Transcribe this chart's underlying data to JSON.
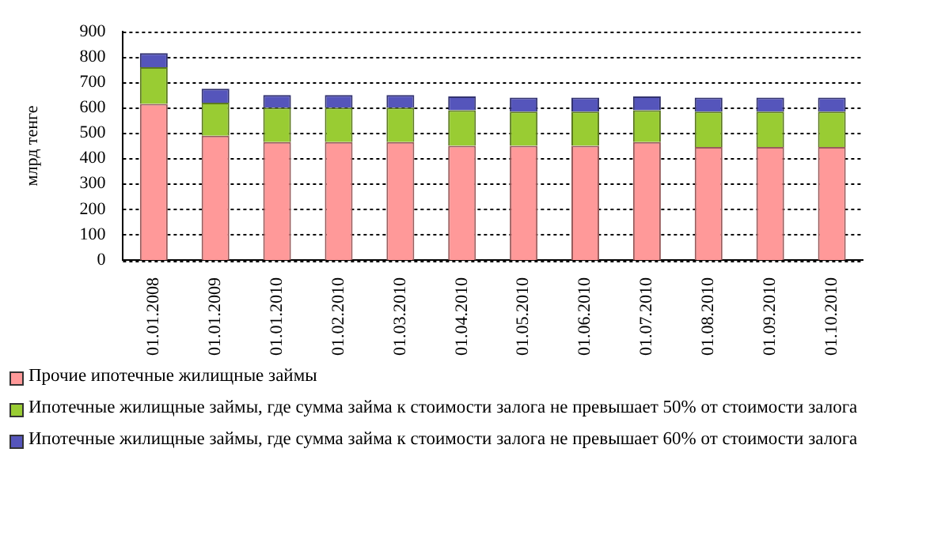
{
  "chart_data": {
    "type": "bar",
    "stacked": true,
    "ylabel": "млрд тенге",
    "categories": [
      "01.01.2008",
      "01.01.2009",
      "01.01.2010",
      "01.02.2010",
      "01.03.2010",
      "01.04.2010",
      "01.05.2010",
      "01.06.2010",
      "01.07.2010",
      "01.08.2010",
      "01.09.2010",
      "01.10.2010"
    ],
    "series": [
      {
        "name": "Прочие ипотечные жилищные займы",
        "color": "#ff9999",
        "values": [
          615,
          490,
          465,
          465,
          465,
          450,
          450,
          450,
          465,
          445,
          445,
          445
        ]
      },
      {
        "name": "Ипотечные жилищные займы, где сумма займа к стоимости залога не превышает 50% от стоимости залога",
        "color": "#99cc33",
        "values": [
          145,
          130,
          135,
          135,
          135,
          140,
          135,
          135,
          125,
          140,
          140,
          140
        ]
      },
      {
        "name": "Ипотечные жилищные займы, где сумма займа к стоимости залога не превышает 60% от стоимости залога",
        "color": "#5555bb",
        "values": [
          55,
          55,
          50,
          50,
          50,
          55,
          55,
          55,
          55,
          55,
          55,
          55
        ]
      }
    ],
    "ylim": [
      0,
      900
    ],
    "yticks": [
      0,
      100,
      200,
      300,
      400,
      500,
      600,
      700,
      800,
      900
    ],
    "grid": "y",
    "legend": "bottom"
  }
}
